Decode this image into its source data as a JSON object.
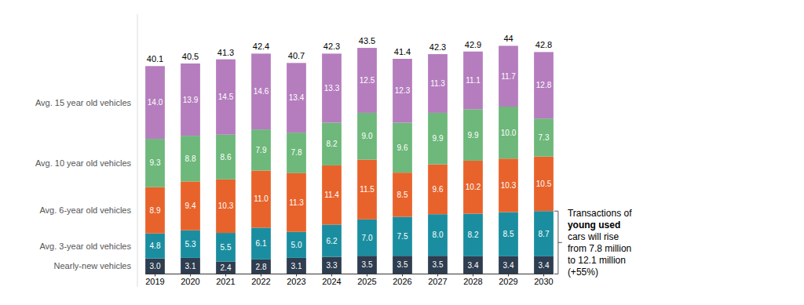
{
  "chart_data": {
    "type": "bar",
    "stacked": true,
    "data_labels": true,
    "tick_labels": "x",
    "categories": [
      "2019",
      "2020",
      "2021",
      "2022",
      "2023",
      "2024",
      "2025",
      "2026",
      "2027",
      "2028",
      "2029",
      "2030"
    ],
    "series": [
      {
        "name": "Nearly-new vehicles",
        "color": "#2e3d4f",
        "values": [
          3.0,
          3.1,
          2.4,
          2.8,
          3.1,
          3.3,
          3.5,
          3.5,
          3.5,
          3.4,
          3.4,
          3.4
        ],
        "value_labels": [
          "3.0",
          "3.1",
          "2.4",
          "2.8",
          "3.1",
          "3.3",
          "3.5",
          "3.5",
          "3.5",
          "3.4",
          "3.4",
          "3.4"
        ]
      },
      {
        "name": "Avg. 3-year old vehicles",
        "color": "#1a8ea0",
        "values": [
          4.8,
          5.3,
          5.5,
          6.1,
          5.0,
          6.2,
          7.0,
          7.5,
          8.0,
          8.2,
          8.5,
          8.7
        ],
        "value_labels": [
          "4.8",
          "5.3",
          "5.5",
          "6.1",
          "5.0",
          "6.2",
          "7.0",
          "7.5",
          "8.0",
          "8.2",
          "8.5",
          "8.7"
        ]
      },
      {
        "name": "Avg. 6-year old vehicles",
        "color": "#e8632b",
        "values": [
          8.9,
          9.4,
          10.3,
          11.0,
          11.3,
          11.4,
          11.5,
          8.5,
          9.6,
          10.2,
          10.3,
          10.5
        ],
        "value_labels": [
          "8.9",
          "9.4",
          "10.3",
          "11.0",
          "11.3",
          "11.4",
          "11.5",
          "8.5",
          "9.6",
          "10.2",
          "10.3",
          "10.5"
        ]
      },
      {
        "name": "Avg. 10 year old vehicles",
        "color": "#6db87a",
        "values": [
          9.3,
          8.8,
          8.6,
          7.9,
          7.8,
          8.2,
          9.0,
          9.6,
          9.9,
          9.9,
          10.0,
          7.3
        ],
        "value_labels": [
          "9.3",
          "8.8",
          "8.6",
          "7.9",
          "7.8",
          "8.2",
          "9.0",
          "9.6",
          "9.9",
          "9.9",
          "10.0",
          "7.3"
        ]
      },
      {
        "name": "Avg. 15 year old vehicles",
        "color": "#b57dbe",
        "values": [
          14.0,
          13.9,
          14.5,
          14.6,
          13.4,
          13.3,
          12.5,
          12.3,
          11.3,
          11.1,
          11.7,
          12.8
        ],
        "value_labels": [
          "14.0",
          "13.9",
          "14.5",
          "14.6",
          "13.4",
          "13.3",
          "12.5",
          "12.3",
          "11.3",
          "11.1",
          "11.7",
          "12.8"
        ]
      }
    ],
    "totals": [
      40.1,
      40.5,
      41.3,
      42.4,
      40.7,
      42.3,
      43.5,
      41.4,
      42.3,
      42.9,
      44.0,
      42.8
    ],
    "ylim": [
      -2.5,
      50
    ],
    "annotation": [
      "Transactions of",
      "young used",
      "cars will rise",
      "from 7.8 million",
      "to 12.1 million",
      "(+55%)"
    ]
  }
}
